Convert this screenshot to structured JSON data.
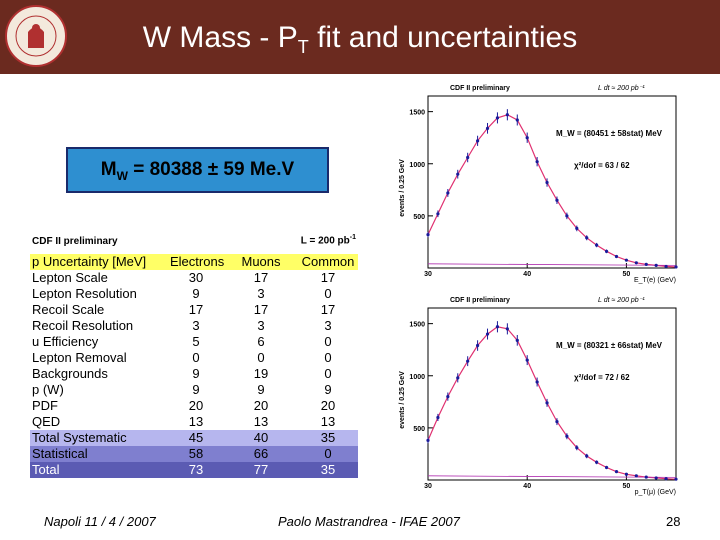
{
  "header": {
    "title_pre": "W Mass - P",
    "title_sub": "T",
    "title_post": " fit and uncertainties",
    "bg_color": "#6b2a1f"
  },
  "result": {
    "label_main": "M",
    "label_sub": "W",
    "value_text": " = 80388 ± 59 Me.V"
  },
  "table": {
    "label": "CDF II preliminary",
    "luminosity_pre": "L = 200 pb",
    "luminosity_exp": "-1",
    "header": [
      "p  Uncertainty [MeV]",
      "Electrons",
      "Muons",
      "Common"
    ],
    "rows": [
      [
        "Lepton Scale",
        "30",
        "17",
        "17"
      ],
      [
        "Lepton Resolution",
        "9",
        "3",
        "0"
      ],
      [
        "Recoil Scale",
        "17",
        "17",
        "17"
      ],
      [
        "Recoil Resolution",
        "3",
        "3",
        "3"
      ],
      [
        "u  Efficiency",
        "5",
        "6",
        "0"
      ],
      [
        "Lepton Removal",
        "0",
        "0",
        "0"
      ],
      [
        "Backgrounds",
        "9",
        "19",
        "0"
      ],
      [
        "p (W)",
        "9",
        "9",
        "9"
      ],
      [
        "PDF",
        "20",
        "20",
        "20"
      ],
      [
        "QED",
        "13",
        "13",
        "13"
      ],
      [
        "Total Systematic",
        "45",
        "40",
        "35"
      ],
      [
        "Statistical",
        "58",
        "66",
        "0"
      ],
      [
        "Total",
        "73",
        "77",
        "35"
      ]
    ]
  },
  "chart_data": [
    {
      "type": "scatter",
      "title": "CDF II preliminary",
      "lumi": "L dt ≈ 200 pb⁻¹",
      "ylabel": "events / 0.25 GeV",
      "xlabel": "E_T(e) (GeV)",
      "fit_text": "M_W = (80451 ± 58stat) MeV",
      "chi2_text": "χ²/dof = 63 / 62",
      "xlim": [
        30,
        55
      ],
      "ylim": [
        0,
        1650
      ],
      "xticks": [
        30,
        40,
        50
      ],
      "yticks": [
        500,
        1000,
        1500
      ],
      "x": [
        30,
        31,
        32,
        33,
        34,
        35,
        36,
        37,
        38,
        39,
        40,
        41,
        42,
        43,
        44,
        45,
        46,
        47,
        48,
        49,
        50,
        51,
        52,
        53,
        54,
        55
      ],
      "y": [
        320,
        520,
        720,
        900,
        1060,
        1220,
        1340,
        1440,
        1470,
        1420,
        1250,
        1020,
        820,
        650,
        500,
        380,
        290,
        220,
        160,
        110,
        75,
        50,
        35,
        25,
        15,
        10
      ]
    },
    {
      "type": "scatter",
      "title": "CDF II preliminary",
      "lumi": "L dt ≈ 200 pb⁻¹",
      "ylabel": "events / 0.25 GeV",
      "xlabel": "p_T(μ) (GeV)",
      "fit_text": "M_W = (80321 ± 66stat) MeV",
      "chi2_text": "χ²/dof = 72 / 62",
      "xlim": [
        30,
        55
      ],
      "ylim": [
        0,
        1650
      ],
      "xticks": [
        30,
        40,
        50
      ],
      "yticks": [
        500,
        1000,
        1500
      ],
      "x": [
        30,
        31,
        32,
        33,
        34,
        35,
        36,
        37,
        38,
        39,
        40,
        41,
        42,
        43,
        44,
        45,
        46,
        47,
        48,
        49,
        50,
        51,
        52,
        53,
        54,
        55
      ],
      "y": [
        380,
        600,
        800,
        980,
        1140,
        1290,
        1400,
        1470,
        1450,
        1340,
        1150,
        940,
        740,
        560,
        420,
        310,
        230,
        170,
        120,
        80,
        55,
        40,
        28,
        20,
        12,
        8
      ]
    }
  ],
  "footer": {
    "date": "Napoli 11 / 4 / 2007",
    "author": "Paolo Mastrandrea - IFAE 2007",
    "page": "28"
  }
}
